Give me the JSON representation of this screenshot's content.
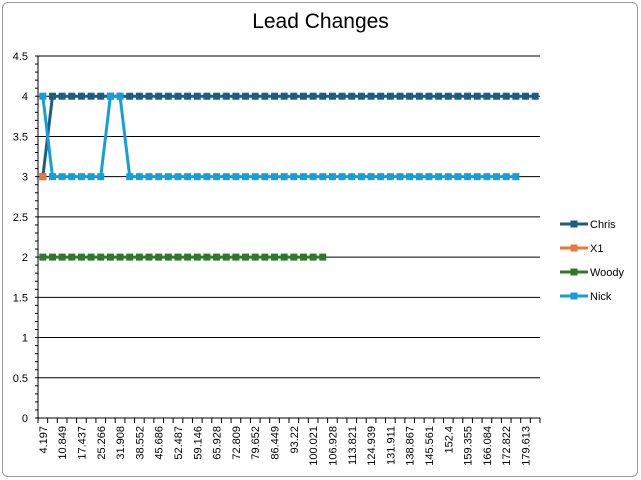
{
  "chart_data": {
    "type": "line",
    "title": "Lead Changes",
    "xlabel": "",
    "ylabel": "",
    "ylim": [
      0,
      4.5
    ],
    "y_ticks": [
      "0",
      "0.5",
      "1",
      "1.5",
      "2",
      "2.5",
      "3",
      "3.5",
      "4",
      "4.5"
    ],
    "grid": "horizontal",
    "legend_position": "right",
    "x_tick_labels": [
      "4.197",
      "10.849",
      "17.437",
      "25.266",
      "31.908",
      "38.552",
      "45.686",
      "52.487",
      "59.146",
      "65.928",
      "72.809",
      "79.652",
      "86.449",
      "93.22",
      "100.021",
      "106.928",
      "113.821",
      "124.939",
      "131.911",
      "138.867",
      "145.561",
      "152.4",
      "159.355",
      "166.084",
      "172.822",
      "179.613"
    ],
    "num_x_points": 52,
    "series": [
      {
        "name": "Chris",
        "color": "#1a5f82",
        "values": [
          3,
          4,
          4,
          4,
          4,
          4,
          4,
          4,
          4,
          4,
          4,
          4,
          4,
          4,
          4,
          4,
          4,
          4,
          4,
          4,
          4,
          4,
          4,
          4,
          4,
          4,
          4,
          4,
          4,
          4,
          4,
          4,
          4,
          4,
          4,
          4,
          4,
          4,
          4,
          4,
          4,
          4,
          4,
          4,
          4,
          4,
          4,
          4,
          4,
          4,
          4,
          4
        ]
      },
      {
        "name": "X1",
        "color": "#e8773a",
        "values": [
          3
        ]
      },
      {
        "name": "Woody",
        "color": "#2f7a2a",
        "values": [
          2,
          2,
          2,
          2,
          2,
          2,
          2,
          2,
          2,
          2,
          2,
          2,
          2,
          2,
          2,
          2,
          2,
          2,
          2,
          2,
          2,
          2,
          2,
          2,
          2,
          2,
          2,
          2,
          2,
          2
        ]
      },
      {
        "name": "Nick",
        "color": "#13a0d8",
        "values": [
          4,
          3,
          3,
          3,
          3,
          3,
          3,
          4,
          4,
          3,
          3,
          3,
          3,
          3,
          3,
          3,
          3,
          3,
          3,
          3,
          3,
          3,
          3,
          3,
          3,
          3,
          3,
          3,
          3,
          3,
          3,
          3,
          3,
          3,
          3,
          3,
          3,
          3,
          3,
          3,
          3,
          3,
          3,
          3,
          3,
          3,
          3,
          3,
          3,
          3
        ]
      }
    ]
  }
}
